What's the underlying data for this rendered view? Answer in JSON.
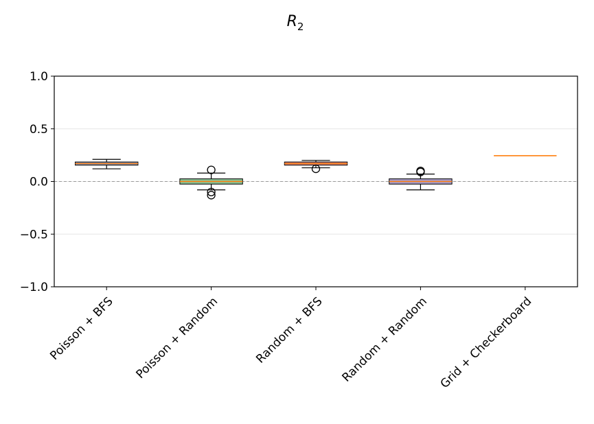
{
  "chart_data": {
    "type": "box",
    "title": "R",
    "title_subscript": "2",
    "xlabel": "",
    "ylabel": "",
    "ylim": [
      -1.0,
      1.0
    ],
    "yticks": [
      1.0,
      0.5,
      0.0,
      -0.5,
      -1.0
    ],
    "ytick_labels": [
      "1.0",
      "0.5",
      "0.0",
      "−0.5",
      "−1.0"
    ],
    "grid": "horizontal, light",
    "reference_line": 0.0,
    "categories": [
      "Poisson + BFS",
      "Poisson + Random",
      "Random + BFS",
      "Random + Random",
      "Grid + Checkerboard"
    ],
    "boxes": [
      {
        "q1": 0.155,
        "median": 0.17,
        "q3": 0.185,
        "whisker_low": 0.12,
        "whisker_high": 0.21,
        "outliers": [],
        "color": "#4c72b0"
      },
      {
        "q1": -0.025,
        "median": 0.0,
        "q3": 0.025,
        "whisker_low": -0.08,
        "whisker_high": 0.08,
        "outliers": [
          0.11,
          -0.1,
          -0.13
        ],
        "color": "#55a868"
      },
      {
        "q1": 0.155,
        "median": 0.17,
        "q3": 0.185,
        "whisker_low": 0.13,
        "whisker_high": 0.2,
        "outliers": [
          0.12
        ],
        "color": "#c44e52"
      },
      {
        "q1": -0.025,
        "median": 0.0,
        "q3": 0.025,
        "whisker_low": -0.08,
        "whisker_high": 0.07,
        "outliers": [
          0.1,
          0.09
        ],
        "color": "#8172b2"
      },
      {
        "q1": 0.245,
        "median": 0.245,
        "q3": 0.245,
        "whisker_low": 0.245,
        "whisker_high": 0.245,
        "outliers": [],
        "color": "#ff7f0e"
      }
    ],
    "median_color": "#ff7f0e",
    "box_fill_opacity": 0.7
  }
}
